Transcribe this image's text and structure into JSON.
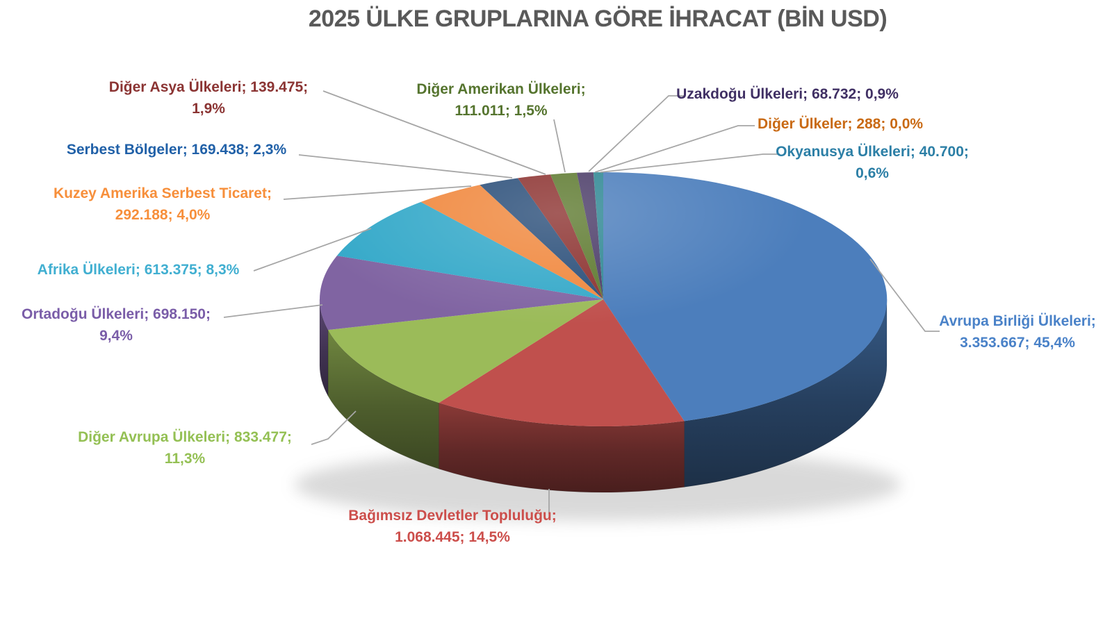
{
  "chart_data": {
    "type": "pie",
    "style": "3d",
    "title": "2025 ÜLKE GRUPLARINA GÖRE İHRACAT (BİN USD)",
    "title_color": "#595959",
    "legend": "none",
    "label_format": "name; value; percent",
    "leader_line_color": "#A6A6A6",
    "slices": [
      {
        "key": "avrupa-birligi-ulkeleri",
        "name": "Avrupa Birliği Ülkeleri",
        "value": 3353667,
        "pct": "45,4%",
        "color": "#4C7EBC",
        "label_color": "#4A82C8",
        "label_l1": "Avrupa Birliği Ülkeleri;",
        "label_l2": "3.353.667; 45,4%"
      },
      {
        "key": "bagimsiz-devletler-toplulugu",
        "name": "Bağımsız Devletler Topluluğu",
        "value": 1068445,
        "pct": "14,5%",
        "color": "#C0504D",
        "label_color": "#CC4E4B",
        "label_l1": "Bağımsız Devletler Topluluğu;",
        "label_l2": "1.068.445; 14,5%"
      },
      {
        "key": "diger-avrupa-ulkeleri",
        "name": "Diğer Avrupa Ülkeleri",
        "value": 833477,
        "pct": "11,3%",
        "color": "#9BBB59",
        "label_color": "#94C054",
        "label_l1": "Diğer Avrupa Ülkeleri; 833.477;",
        "label_l2": "11,3%"
      },
      {
        "key": "ortadogu-ulkeleri",
        "name": "Ortadoğu Ülkeleri",
        "value": 698150,
        "pct": "9,4%",
        "color": "#8064A2",
        "label_color": "#7A5DA8",
        "label_l1": "Ortadoğu Ülkeleri; 698.150;",
        "label_l2": "9,4%"
      },
      {
        "key": "afrika-ulkeleri",
        "name": "Afrika Ülkeleri",
        "value": 613375,
        "pct": "8,3%",
        "color": "#35A9C9",
        "label_color": "#41AFD1",
        "label_l1": "Afrika Ülkeleri; 613.375; 8,3%",
        "label_l2": ""
      },
      {
        "key": "kuzey-amerika-serbest-ticaret",
        "name": "Kuzey Amerika Serbest Ticaret",
        "value": 292188,
        "pct": "4,0%",
        "color": "#F0883E",
        "label_color": "#F78F3B",
        "label_l1": "Kuzey Amerika Serbest Ticaret;",
        "label_l2": "292.188; 4,0%"
      },
      {
        "key": "serbest-bolgeler",
        "name": "Serbest Bölgeler",
        "value": 169438,
        "pct": "2,3%",
        "color": "#2A4E79",
        "label_color": "#2161A8",
        "label_l1": "Serbest Bölgeler; 169.438; 2,3%",
        "label_l2": ""
      },
      {
        "key": "diger-asya-ulkeleri",
        "name": "Diğer Asya Ülkeleri",
        "value": 139475,
        "pct": "1,9%",
        "color": "#8C3230",
        "label_color": "#8B3433",
        "label_l1": "Diğer Asya Ülkeleri; 139.475;",
        "label_l2": "1,9%"
      },
      {
        "key": "diger-amerikan-ulkeleri",
        "name": "Diğer Amerikan Ülkeleri",
        "value": 111011,
        "pct": "1,5%",
        "color": "#5E7A30",
        "label_color": "#55742E",
        "label_l1": "Diğer Amerikan Ülkeleri;",
        "label_l2": "111.011; 1,5%"
      },
      {
        "key": "uzakdogu-ulkeleri",
        "name": "Uzakdoğu Ülkeleri",
        "value": 68732,
        "pct": "0,9%",
        "color": "#4A3B67",
        "label_color": "#403064",
        "label_l1": "Uzakdoğu Ülkeleri; 68.732; 0,9%",
        "label_l2": ""
      },
      {
        "key": "diger-ulkeler",
        "name": "Diğer Ülkeler",
        "value": 288,
        "pct": "0,0%",
        "color": "#C55A11",
        "label_color": "#C96A14",
        "label_l1": "Diğer Ülkeler; 288; 0,0%",
        "label_l2": ""
      },
      {
        "key": "okyanusya-ulkeleri",
        "name": "Okyanusya Ülkeleri",
        "value": 40700,
        "pct": "0,6%",
        "color": "#2E8793",
        "label_color": "#2C7FA6",
        "label_l1": "Okyanusya Ülkeleri; 40.700;",
        "label_l2": "0,6%"
      }
    ]
  }
}
